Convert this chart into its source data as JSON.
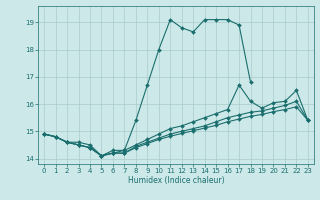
{
  "xlabel": "Humidex (Indice chaleur)",
  "xlim": [
    -0.5,
    23.5
  ],
  "ylim": [
    13.8,
    19.6
  ],
  "yticks": [
    14,
    15,
    16,
    17,
    18,
    19
  ],
  "xticks": [
    0,
    1,
    2,
    3,
    4,
    5,
    6,
    7,
    8,
    9,
    10,
    11,
    12,
    13,
    14,
    15,
    16,
    17,
    18,
    19,
    20,
    21,
    22,
    23
  ],
  "bg_color": "#cde8e8",
  "grid_color": "#aacccc",
  "line_color": "#1a6e6e",
  "line1_x": [
    0,
    1,
    2,
    3,
    4,
    5,
    6,
    7,
    8,
    9,
    10,
    11,
    12,
    13,
    14,
    15,
    16,
    17,
    18
  ],
  "line1_y": [
    14.9,
    14.8,
    14.6,
    14.6,
    14.5,
    14.1,
    14.3,
    14.3,
    15.4,
    16.7,
    18.0,
    19.1,
    18.8,
    18.65,
    19.1,
    19.1,
    19.1,
    18.9,
    16.8
  ],
  "line2_x": [
    0,
    1,
    2,
    3,
    4,
    5,
    6,
    7,
    8,
    9,
    10,
    11,
    12,
    13,
    14,
    15,
    16,
    17,
    18,
    19,
    20,
    21,
    22,
    23
  ],
  "line2_y": [
    14.9,
    14.8,
    14.6,
    14.5,
    14.4,
    14.1,
    14.2,
    14.3,
    14.5,
    14.7,
    14.9,
    15.1,
    15.2,
    15.35,
    15.5,
    15.65,
    15.8,
    16.7,
    16.1,
    15.85,
    16.05,
    16.1,
    16.5,
    15.4
  ],
  "line3_x": [
    0,
    1,
    2,
    3,
    4,
    5,
    6,
    7,
    8,
    9,
    10,
    11,
    12,
    13,
    14,
    15,
    16,
    17,
    18,
    19,
    20,
    21,
    22,
    23
  ],
  "line3_y": [
    14.9,
    14.8,
    14.6,
    14.5,
    14.4,
    14.1,
    14.2,
    14.2,
    14.45,
    14.6,
    14.75,
    14.9,
    15.0,
    15.1,
    15.2,
    15.35,
    15.5,
    15.6,
    15.7,
    15.75,
    15.85,
    15.95,
    16.1,
    15.4
  ],
  "line4_x": [
    0,
    1,
    2,
    3,
    4,
    5,
    6,
    7,
    8,
    9,
    10,
    11,
    12,
    13,
    14,
    15,
    16,
    17,
    18,
    19,
    20,
    21,
    22,
    23
  ],
  "line4_y": [
    14.9,
    14.8,
    14.6,
    14.5,
    14.4,
    14.1,
    14.2,
    14.2,
    14.4,
    14.55,
    14.7,
    14.82,
    14.92,
    15.02,
    15.12,
    15.22,
    15.35,
    15.45,
    15.55,
    15.62,
    15.72,
    15.8,
    15.9,
    15.4
  ]
}
